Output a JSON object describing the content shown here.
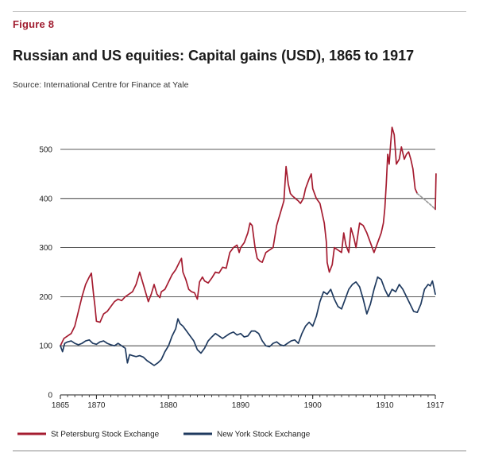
{
  "figure_label": "Figure 8",
  "title": "Russian and US equities: Capital gains (USD), 1865 to 1917",
  "source": "Source: International Centre for Finance at Yale",
  "colors": {
    "st_petersburg": "#a51c30",
    "new_york": "#1f3a5f",
    "projection": "#9a9a9a"
  },
  "chart_data": {
    "type": "line",
    "xlim": [
      1865,
      1917
    ],
    "ylim": [
      0,
      500
    ],
    "x_ticks": [
      {
        "value": 1865,
        "label": "1865"
      },
      {
        "value": 1870,
        "label": "1870"
      },
      {
        "value": 1880,
        "label": "1880"
      },
      {
        "value": 1890,
        "label": "1890"
      },
      {
        "value": 1900,
        "label": "1900"
      },
      {
        "value": 1910,
        "label": "1910"
      },
      {
        "value": 1917,
        "label": "1917"
      }
    ],
    "y_ticks": [
      {
        "value": 0,
        "label": "0"
      },
      {
        "value": 100,
        "label": "100"
      },
      {
        "value": 200,
        "label": "200"
      },
      {
        "value": 300,
        "label": "300"
      },
      {
        "value": 400,
        "label": "400"
      },
      {
        "value": 500,
        "label": "500"
      }
    ],
    "grid": true,
    "legend_position": "bottom",
    "series": [
      {
        "name": "St Petersburg Stock Exchange",
        "points": [
          [
            1865.0,
            100
          ],
          [
            1865.5,
            115
          ],
          [
            1866.0,
            120
          ],
          [
            1866.5,
            125
          ],
          [
            1867.0,
            140
          ],
          [
            1867.5,
            170
          ],
          [
            1868.0,
            200
          ],
          [
            1868.5,
            225
          ],
          [
            1869.0,
            240
          ],
          [
            1869.3,
            248
          ],
          [
            1869.6,
            205
          ],
          [
            1869.8,
            180
          ],
          [
            1870.0,
            150
          ],
          [
            1870.5,
            148
          ],
          [
            1871.0,
            165
          ],
          [
            1871.5,
            170
          ],
          [
            1872.0,
            180
          ],
          [
            1872.5,
            190
          ],
          [
            1873.0,
            195
          ],
          [
            1873.5,
            192
          ],
          [
            1874.0,
            200
          ],
          [
            1874.5,
            205
          ],
          [
            1875.0,
            210
          ],
          [
            1875.5,
            225
          ],
          [
            1876.0,
            250
          ],
          [
            1876.4,
            230
          ],
          [
            1876.8,
            210
          ],
          [
            1877.2,
            190
          ],
          [
            1877.6,
            205
          ],
          [
            1878.0,
            225
          ],
          [
            1878.4,
            205
          ],
          [
            1878.8,
            198
          ],
          [
            1879.0,
            210
          ],
          [
            1879.5,
            215
          ],
          [
            1880.0,
            230
          ],
          [
            1880.5,
            245
          ],
          [
            1881.0,
            255
          ],
          [
            1881.5,
            270
          ],
          [
            1881.8,
            278
          ],
          [
            1882.0,
            250
          ],
          [
            1882.4,
            235
          ],
          [
            1882.8,
            215
          ],
          [
            1883.2,
            210
          ],
          [
            1883.6,
            208
          ],
          [
            1884.0,
            195
          ],
          [
            1884.3,
            230
          ],
          [
            1884.7,
            240
          ],
          [
            1885.0,
            232
          ],
          [
            1885.5,
            228
          ],
          [
            1886.0,
            238
          ],
          [
            1886.5,
            250
          ],
          [
            1887.0,
            248
          ],
          [
            1887.5,
            260
          ],
          [
            1888.0,
            258
          ],
          [
            1888.5,
            290
          ],
          [
            1889.0,
            300
          ],
          [
            1889.5,
            305
          ],
          [
            1889.8,
            290
          ],
          [
            1890.0,
            300
          ],
          [
            1890.5,
            310
          ],
          [
            1891.0,
            330
          ],
          [
            1891.3,
            350
          ],
          [
            1891.6,
            345
          ],
          [
            1892.0,
            300
          ],
          [
            1892.3,
            278
          ],
          [
            1892.7,
            272
          ],
          [
            1893.0,
            270
          ],
          [
            1893.5,
            290
          ],
          [
            1894.0,
            295
          ],
          [
            1894.5,
            300
          ],
          [
            1895.0,
            345
          ],
          [
            1895.5,
            370
          ],
          [
            1896.0,
            395
          ],
          [
            1896.3,
            465
          ],
          [
            1896.6,
            430
          ],
          [
            1896.9,
            410
          ],
          [
            1897.2,
            405
          ],
          [
            1897.6,
            400
          ],
          [
            1898.0,
            395
          ],
          [
            1898.3,
            390
          ],
          [
            1898.7,
            400
          ],
          [
            1899.0,
            420
          ],
          [
            1899.5,
            440
          ],
          [
            1899.8,
            450
          ],
          [
            1900.0,
            420
          ],
          [
            1900.5,
            400
          ],
          [
            1901.0,
            390
          ],
          [
            1901.3,
            370
          ],
          [
            1901.6,
            350
          ],
          [
            1901.9,
            310
          ],
          [
            1902.0,
            270
          ],
          [
            1902.3,
            250
          ],
          [
            1902.7,
            265
          ],
          [
            1903.0,
            300
          ],
          [
            1903.5,
            295
          ],
          [
            1904.0,
            290
          ],
          [
            1904.3,
            330
          ],
          [
            1904.6,
            305
          ],
          [
            1905.0,
            290
          ],
          [
            1905.3,
            340
          ],
          [
            1905.7,
            320
          ],
          [
            1906.0,
            300
          ],
          [
            1906.5,
            350
          ],
          [
            1907.0,
            345
          ],
          [
            1907.5,
            330
          ],
          [
            1908.0,
            310
          ],
          [
            1908.5,
            290
          ],
          [
            1909.0,
            310
          ],
          [
            1909.5,
            330
          ],
          [
            1909.8,
            350
          ],
          [
            1910.0,
            380
          ],
          [
            1910.2,
            430
          ],
          [
            1910.4,
            490
          ],
          [
            1910.6,
            470
          ],
          [
            1910.8,
            510
          ],
          [
            1911.0,
            545
          ],
          [
            1911.3,
            530
          ],
          [
            1911.6,
            470
          ],
          [
            1912.0,
            480
          ],
          [
            1912.3,
            505
          ],
          [
            1912.7,
            480
          ],
          [
            1913.0,
            490
          ],
          [
            1913.3,
            495
          ],
          [
            1913.6,
            480
          ],
          [
            1913.9,
            460
          ],
          [
            1914.2,
            420
          ],
          [
            1914.5,
            410
          ]
        ]
      },
      {
        "name": "New York Stock Exchange",
        "points": [
          [
            1865.0,
            100
          ],
          [
            1865.3,
            88
          ],
          [
            1865.6,
            105
          ],
          [
            1866.0,
            108
          ],
          [
            1866.5,
            110
          ],
          [
            1867.0,
            105
          ],
          [
            1867.5,
            102
          ],
          [
            1868.0,
            105
          ],
          [
            1868.5,
            110
          ],
          [
            1869.0,
            112
          ],
          [
            1869.5,
            105
          ],
          [
            1870.0,
            103
          ],
          [
            1870.5,
            108
          ],
          [
            1871.0,
            110
          ],
          [
            1871.5,
            105
          ],
          [
            1872.0,
            102
          ],
          [
            1872.5,
            100
          ],
          [
            1873.0,
            105
          ],
          [
            1873.5,
            100
          ],
          [
            1874.0,
            95
          ],
          [
            1874.3,
            65
          ],
          [
            1874.6,
            82
          ],
          [
            1875.0,
            80
          ],
          [
            1875.5,
            78
          ],
          [
            1876.0,
            80
          ],
          [
            1876.5,
            77
          ],
          [
            1877.0,
            70
          ],
          [
            1877.5,
            65
          ],
          [
            1878.0,
            60
          ],
          [
            1878.5,
            65
          ],
          [
            1879.0,
            72
          ],
          [
            1879.5,
            88
          ],
          [
            1880.0,
            100
          ],
          [
            1880.5,
            120
          ],
          [
            1881.0,
            135
          ],
          [
            1881.3,
            155
          ],
          [
            1881.6,
            145
          ],
          [
            1882.0,
            140
          ],
          [
            1882.5,
            130
          ],
          [
            1883.0,
            120
          ],
          [
            1883.5,
            110
          ],
          [
            1884.0,
            92
          ],
          [
            1884.5,
            85
          ],
          [
            1885.0,
            95
          ],
          [
            1885.5,
            110
          ],
          [
            1886.0,
            118
          ],
          [
            1886.5,
            125
          ],
          [
            1887.0,
            120
          ],
          [
            1887.5,
            115
          ],
          [
            1888.0,
            120
          ],
          [
            1888.5,
            125
          ],
          [
            1889.0,
            128
          ],
          [
            1889.5,
            122
          ],
          [
            1890.0,
            125
          ],
          [
            1890.5,
            118
          ],
          [
            1891.0,
            120
          ],
          [
            1891.5,
            130
          ],
          [
            1892.0,
            130
          ],
          [
            1892.5,
            125
          ],
          [
            1893.0,
            110
          ],
          [
            1893.5,
            100
          ],
          [
            1894.0,
            98
          ],
          [
            1894.5,
            105
          ],
          [
            1895.0,
            108
          ],
          [
            1895.5,
            102
          ],
          [
            1896.0,
            100
          ],
          [
            1896.5,
            105
          ],
          [
            1897.0,
            110
          ],
          [
            1897.5,
            112
          ],
          [
            1898.0,
            105
          ],
          [
            1898.5,
            125
          ],
          [
            1899.0,
            140
          ],
          [
            1899.5,
            148
          ],
          [
            1900.0,
            140
          ],
          [
            1900.5,
            160
          ],
          [
            1901.0,
            190
          ],
          [
            1901.5,
            210
          ],
          [
            1902.0,
            205
          ],
          [
            1902.5,
            215
          ],
          [
            1903.0,
            195
          ],
          [
            1903.5,
            180
          ],
          [
            1904.0,
            175
          ],
          [
            1904.5,
            195
          ],
          [
            1905.0,
            215
          ],
          [
            1905.5,
            225
          ],
          [
            1906.0,
            230
          ],
          [
            1906.5,
            220
          ],
          [
            1907.0,
            195
          ],
          [
            1907.5,
            165
          ],
          [
            1908.0,
            185
          ],
          [
            1908.5,
            215
          ],
          [
            1909.0,
            240
          ],
          [
            1909.5,
            235
          ],
          [
            1910.0,
            215
          ],
          [
            1910.5,
            200
          ],
          [
            1911.0,
            215
          ],
          [
            1911.5,
            210
          ],
          [
            1912.0,
            225
          ],
          [
            1912.5,
            215
          ],
          [
            1913.0,
            200
          ],
          [
            1913.5,
            185
          ],
          [
            1914.0,
            170
          ],
          [
            1914.5,
            168
          ],
          [
            1915.0,
            185
          ],
          [
            1915.5,
            215
          ],
          [
            1916.0,
            225
          ],
          [
            1916.3,
            222
          ],
          [
            1916.6,
            232
          ],
          [
            1916.9,
            212
          ],
          [
            1917.0,
            205
          ]
        ]
      },
      {
        "name": "",
        "style": "dashed",
        "points": [
          [
            1914.5,
            410
          ],
          [
            1915.5,
            398
          ],
          [
            1916.5,
            385
          ],
          [
            1917.0,
            378
          ]
        ]
      },
      {
        "name": "",
        "points": [
          [
            1917.0,
            378
          ],
          [
            1917.1,
            450
          ]
        ]
      }
    ]
  }
}
